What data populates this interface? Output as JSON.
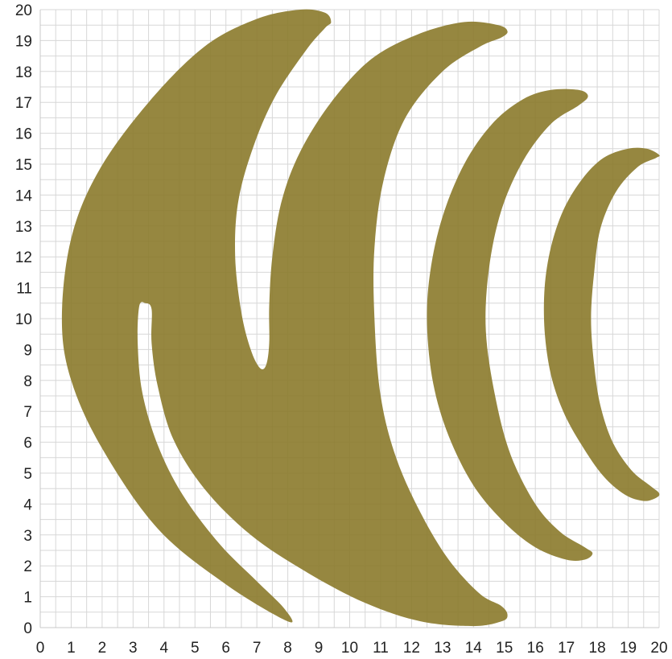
{
  "figure": {
    "x_ticks": [
      "0",
      "1",
      "2",
      "3",
      "4",
      "5",
      "6",
      "7",
      "8",
      "9",
      "10",
      "11",
      "12",
      "13",
      "14",
      "15",
      "16",
      "17",
      "18",
      "19",
      "20"
    ],
    "y_ticks": [
      "0",
      "1",
      "2",
      "3",
      "4",
      "5",
      "6",
      "7",
      "8",
      "9",
      "10",
      "11",
      "12",
      "13",
      "14",
      "15",
      "16",
      "17",
      "18",
      "19",
      "20"
    ],
    "x_range": [
      0,
      20
    ],
    "y_range": [
      0,
      20
    ],
    "grid": true,
    "shape_color": "#8b7a2b",
    "shape_opacity": 0.9,
    "shapes": [
      {
        "name": "large-crescent-body",
        "points": [
          [
            8.0,
            0.2
          ],
          [
            6.0,
            1.4
          ],
          [
            3.8,
            3.2
          ],
          [
            2.0,
            5.8
          ],
          [
            1.0,
            8.0
          ],
          [
            0.7,
            10.0
          ],
          [
            1.0,
            12.6
          ],
          [
            1.9,
            14.8
          ],
          [
            3.5,
            17.0
          ],
          [
            5.3,
            18.8
          ],
          [
            7.0,
            19.7
          ],
          [
            8.4,
            20.0
          ],
          [
            9.2,
            19.9
          ],
          [
            9.4,
            19.6
          ],
          [
            9.2,
            19.4
          ],
          [
            8.6,
            18.7
          ],
          [
            7.6,
            17.2
          ],
          [
            6.9,
            15.6
          ],
          [
            6.4,
            13.8
          ],
          [
            6.3,
            12.0
          ],
          [
            6.5,
            10.2
          ],
          [
            6.8,
            9.0
          ],
          [
            7.1,
            8.4
          ],
          [
            7.3,
            8.5
          ],
          [
            7.4,
            9.2
          ],
          [
            7.4,
            10.4
          ],
          [
            7.5,
            12.0
          ],
          [
            7.8,
            13.8
          ],
          [
            8.4,
            15.4
          ],
          [
            9.4,
            17.0
          ],
          [
            10.7,
            18.4
          ],
          [
            12.2,
            19.2
          ],
          [
            13.7,
            19.6
          ],
          [
            14.8,
            19.5
          ],
          [
            15.1,
            19.3
          ],
          [
            14.9,
            19.1
          ],
          [
            14.2,
            18.8
          ],
          [
            13.0,
            18.0
          ],
          [
            11.8,
            16.5
          ],
          [
            11.1,
            14.5
          ],
          [
            10.8,
            12.3
          ],
          [
            10.8,
            10.0
          ],
          [
            11.0,
            7.5
          ],
          [
            11.5,
            5.5
          ],
          [
            12.3,
            3.7
          ],
          [
            13.2,
            2.2
          ],
          [
            14.2,
            1.1
          ],
          [
            14.9,
            0.7
          ],
          [
            15.1,
            0.4
          ],
          [
            14.9,
            0.2
          ],
          [
            14.0,
            0.05
          ],
          [
            12.3,
            0.2
          ],
          [
            10.5,
            0.8
          ],
          [
            8.6,
            1.8
          ],
          [
            6.8,
            3.0
          ],
          [
            5.3,
            4.5
          ],
          [
            4.3,
            6.1
          ],
          [
            3.8,
            7.8
          ],
          [
            3.6,
            9.2
          ],
          [
            3.6,
            10.3
          ],
          [
            3.4,
            10.5
          ],
          [
            3.2,
            10.4
          ],
          [
            3.15,
            9.2
          ],
          [
            3.3,
            7.6
          ],
          [
            3.8,
            5.9
          ],
          [
            4.6,
            4.3
          ],
          [
            5.8,
            2.7
          ],
          [
            7.0,
            1.5
          ],
          [
            7.9,
            0.6
          ]
        ]
      },
      {
        "name": "medium-crescent",
        "points": [
          [
            17.7,
            17.2
          ],
          [
            17.4,
            17.4
          ],
          [
            16.5,
            17.4
          ],
          [
            15.6,
            17.1
          ],
          [
            14.6,
            16.3
          ],
          [
            13.7,
            15.0
          ],
          [
            13.0,
            13.3
          ],
          [
            12.6,
            11.5
          ],
          [
            12.5,
            9.8
          ],
          [
            12.7,
            7.9
          ],
          [
            13.2,
            6.2
          ],
          [
            14.0,
            4.6
          ],
          [
            15.0,
            3.4
          ],
          [
            16.0,
            2.6
          ],
          [
            17.0,
            2.2
          ],
          [
            17.6,
            2.2
          ],
          [
            17.85,
            2.4
          ],
          [
            17.6,
            2.6
          ],
          [
            16.8,
            3.1
          ],
          [
            16.0,
            4.0
          ],
          [
            15.2,
            5.6
          ],
          [
            14.7,
            7.5
          ],
          [
            14.4,
            9.6
          ],
          [
            14.5,
            11.6
          ],
          [
            14.9,
            13.5
          ],
          [
            15.6,
            15.1
          ],
          [
            16.5,
            16.3
          ],
          [
            17.4,
            16.9
          ]
        ]
      },
      {
        "name": "small-crescent",
        "points": [
          [
            20.0,
            15.3
          ],
          [
            19.6,
            15.5
          ],
          [
            19.0,
            15.5
          ],
          [
            18.2,
            15.2
          ],
          [
            17.5,
            14.5
          ],
          [
            16.9,
            13.5
          ],
          [
            16.5,
            12.3
          ],
          [
            16.3,
            11.0
          ],
          [
            16.3,
            9.6
          ],
          [
            16.5,
            8.2
          ],
          [
            16.9,
            7.0
          ],
          [
            17.5,
            5.9
          ],
          [
            18.2,
            4.9
          ],
          [
            18.9,
            4.3
          ],
          [
            19.5,
            4.1
          ],
          [
            19.9,
            4.2
          ],
          [
            20.0,
            4.35
          ],
          [
            19.7,
            4.6
          ],
          [
            19.1,
            5.1
          ],
          [
            18.5,
            6.0
          ],
          [
            18.1,
            7.2
          ],
          [
            17.9,
            8.5
          ],
          [
            17.8,
            10.0
          ],
          [
            17.9,
            11.5
          ],
          [
            18.1,
            12.9
          ],
          [
            18.6,
            14.1
          ],
          [
            19.3,
            14.9
          ],
          [
            19.9,
            15.2
          ]
        ]
      }
    ]
  }
}
